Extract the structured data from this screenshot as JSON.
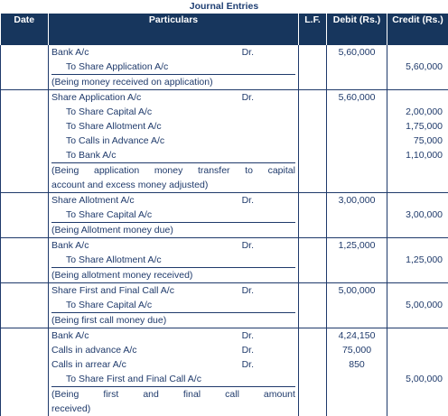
{
  "title": "Journal Entries",
  "headers": {
    "date": "Date",
    "particulars": "Particulars",
    "lf": "L.F.",
    "debit": "Debit (Rs.)",
    "credit": "Credit (Rs.)"
  },
  "entries": [
    {
      "lines": [
        {
          "text": "Bank A/c",
          "dr": "Dr.",
          "debit": "5,60,000",
          "credit": ""
        },
        {
          "text": "To Share Application A/c",
          "indent": true,
          "dr": "",
          "debit": "",
          "credit": "5,60,000"
        },
        {
          "text": "(Being money received on application)",
          "narration": true,
          "dr": "",
          "debit": "",
          "credit": ""
        }
      ]
    },
    {
      "lines": [
        {
          "text": "Share Application A/c",
          "dr": "Dr.",
          "debit": "5,60,000",
          "credit": ""
        },
        {
          "text": "To Share Capital A/c",
          "indent": true,
          "dr": "",
          "debit": "",
          "credit": "2,00,000"
        },
        {
          "text": "To Share Allotment A/c",
          "indent": true,
          "dr": "",
          "debit": "",
          "credit": "1,75,000"
        },
        {
          "text": "To Calls in Advance A/c",
          "indent": true,
          "dr": "",
          "debit": "",
          "credit": "75,000"
        },
        {
          "text": "To Bank A/c",
          "indent": true,
          "dr": "",
          "debit": "",
          "credit": "1,10,000"
        },
        {
          "text": "(Being application money transfer to capital",
          "narration": true,
          "justify": true,
          "dr": "",
          "debit": "",
          "credit": ""
        },
        {
          "text": "account and excess money adjusted)",
          "narration": true,
          "dr": "",
          "debit": "",
          "credit": ""
        }
      ]
    },
    {
      "lines": [
        {
          "text": "Share Allotment A/c",
          "dr": "Dr.",
          "debit": "3,00,000",
          "credit": ""
        },
        {
          "text": "To Share Capital A/c",
          "indent": true,
          "dr": "",
          "debit": "",
          "credit": "3,00,000"
        },
        {
          "text": "(Being Allotment money due)",
          "narration": true,
          "dr": "",
          "debit": "",
          "credit": ""
        }
      ]
    },
    {
      "lines": [
        {
          "text": "Bank A/c",
          "dr": "Dr.",
          "debit": "1,25,000",
          "credit": ""
        },
        {
          "text": "To Share Allotment A/c",
          "indent": true,
          "dr": "",
          "debit": "",
          "credit": "1,25,000"
        },
        {
          "text": "(Being allotment money received)",
          "narration": true,
          "dr": "",
          "debit": "",
          "credit": ""
        }
      ]
    },
    {
      "lines": [
        {
          "text": "Share First and Final Call A/c",
          "dr": "Dr.",
          "debit": "5,00,000",
          "credit": ""
        },
        {
          "text": "To Share Capital A/c",
          "indent": true,
          "dr": "",
          "debit": "",
          "credit": "5,00,000"
        },
        {
          "text": "(Being first call money due)",
          "narration": true,
          "dr": "",
          "debit": "",
          "credit": ""
        }
      ]
    },
    {
      "lines": [
        {
          "text": "Bank A/c",
          "dr": "Dr.",
          "debit": "4,24,150",
          "credit": ""
        },
        {
          "text": "Calls in advance A/c",
          "dr": "Dr.",
          "debit": "75,000",
          "credit": ""
        },
        {
          "text": "Calls in arrear A/c",
          "dr": "Dr.",
          "debit": "850",
          "credit": ""
        },
        {
          "text": "To Share First and Final Call A/c",
          "indent": true,
          "dr": "",
          "debit": "",
          "credit": "5,00,000"
        },
        {
          "text": "(Being first and final call amount",
          "narration": true,
          "justify": true,
          "dr": "",
          "debit": "",
          "credit": ""
        },
        {
          "text": "received)",
          "narration": true,
          "dr": "",
          "debit": "",
          "credit": ""
        }
      ]
    }
  ]
}
